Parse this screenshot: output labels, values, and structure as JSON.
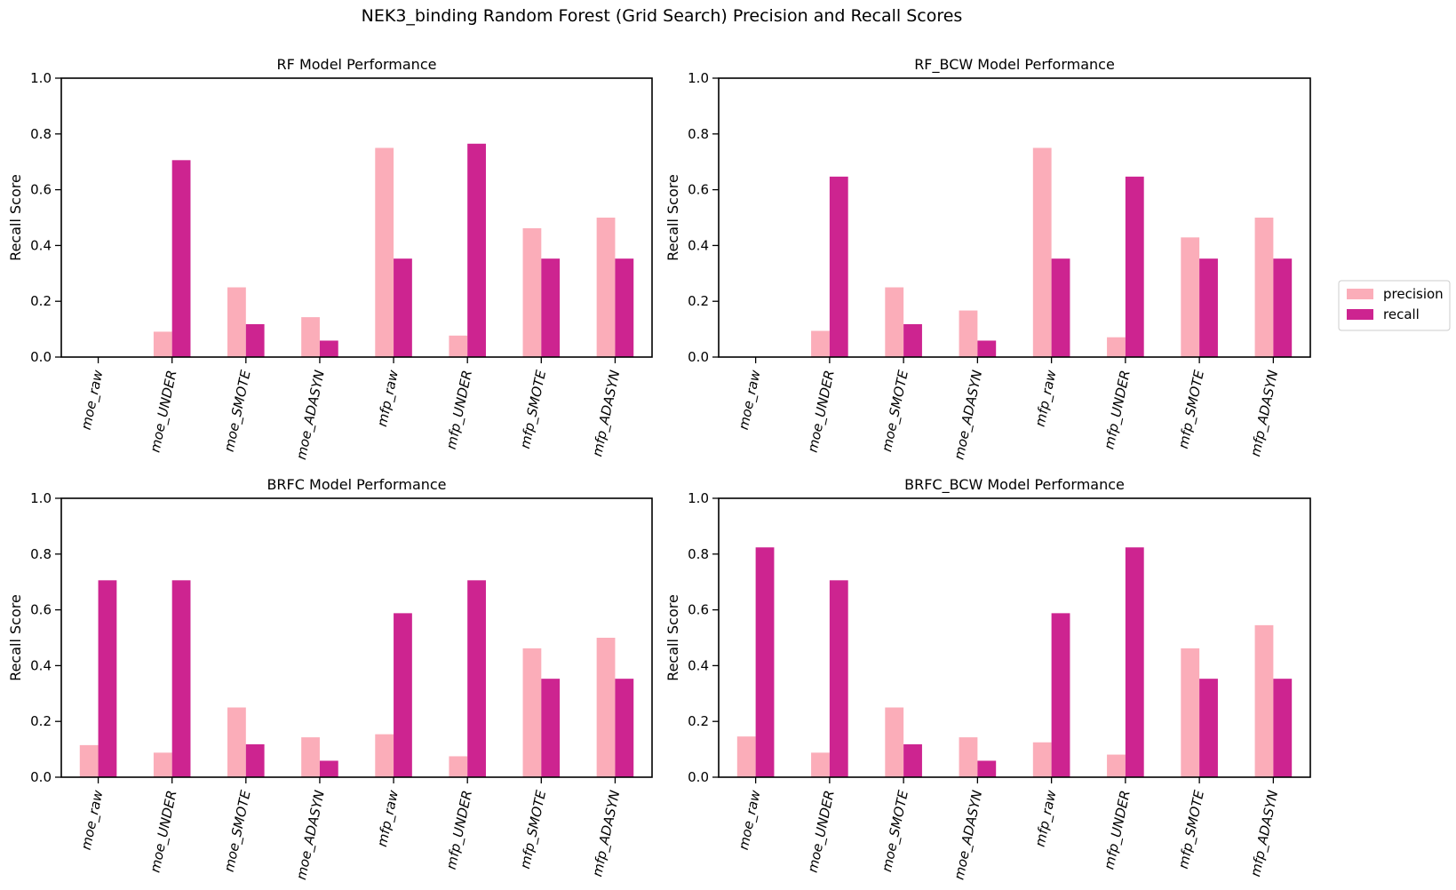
{
  "figure": {
    "title": "NEK3_binding Random Forest (Grid Search) Precision and Recall Scores",
    "colors": {
      "precision": "#fbadb9",
      "recall": "#cd2490"
    },
    "legend": {
      "placement": "right",
      "entries": [
        "precision",
        "recall"
      ]
    }
  },
  "chart_data": [
    {
      "type": "bar",
      "title": "RF Model Performance",
      "ylabel": "Recall Score",
      "xlabel": "",
      "ylim": [
        0,
        1.0
      ],
      "yticks": [
        "0.0",
        "0.2",
        "0.4",
        "0.6",
        "0.8",
        "1.0"
      ],
      "categories": [
        "moe_raw",
        "moe_UNDER",
        "moe_SMOTE",
        "moe_ADASYN",
        "mfp_raw",
        "mfp_UNDER",
        "mfp_SMOTE",
        "mfp_ADASYN"
      ],
      "series": [
        {
          "name": "precision",
          "values": [
            0.0,
            0.091,
            0.25,
            0.143,
            0.75,
            0.077,
            0.462,
            0.5
          ]
        },
        {
          "name": "recall",
          "values": [
            0.0,
            0.706,
            0.118,
            0.059,
            0.353,
            0.765,
            0.353,
            0.353
          ]
        }
      ]
    },
    {
      "type": "bar",
      "title": "RF_BCW Model Performance",
      "ylabel": "Recall Score",
      "xlabel": "",
      "ylim": [
        0,
        1.0
      ],
      "yticks": [
        "0.0",
        "0.2",
        "0.4",
        "0.6",
        "0.8",
        "1.0"
      ],
      "categories": [
        "moe_raw",
        "moe_UNDER",
        "moe_SMOTE",
        "moe_ADASYN",
        "mfp_raw",
        "mfp_UNDER",
        "mfp_SMOTE",
        "mfp_ADASYN"
      ],
      "series": [
        {
          "name": "precision",
          "values": [
            0.0,
            0.094,
            0.25,
            0.167,
            0.75,
            0.071,
            0.429,
            0.5
          ]
        },
        {
          "name": "recall",
          "values": [
            0.0,
            0.647,
            0.118,
            0.059,
            0.353,
            0.647,
            0.353,
            0.353
          ]
        }
      ]
    },
    {
      "type": "bar",
      "title": "BRFC Model Performance",
      "ylabel": "Recall Score",
      "xlabel": "",
      "ylim": [
        0,
        1.0
      ],
      "yticks": [
        "0.0",
        "0.2",
        "0.4",
        "0.6",
        "0.8",
        "1.0"
      ],
      "categories": [
        "moe_raw",
        "moe_UNDER",
        "moe_SMOTE",
        "moe_ADASYN",
        "mfp_raw",
        "mfp_UNDER",
        "mfp_SMOTE",
        "mfp_ADASYN"
      ],
      "series": [
        {
          "name": "precision",
          "values": [
            0.115,
            0.088,
            0.25,
            0.143,
            0.154,
            0.075,
            0.462,
            0.5
          ]
        },
        {
          "name": "recall",
          "values": [
            0.706,
            0.706,
            0.118,
            0.059,
            0.588,
            0.706,
            0.353,
            0.353
          ]
        }
      ]
    },
    {
      "type": "bar",
      "title": "BRFC_BCW Model Performance",
      "ylabel": "Recall Score",
      "xlabel": "",
      "ylim": [
        0,
        1.0
      ],
      "yticks": [
        "0.0",
        "0.2",
        "0.4",
        "0.6",
        "0.8",
        "1.0"
      ],
      "categories": [
        "moe_raw",
        "moe_UNDER",
        "moe_SMOTE",
        "moe_ADASYN",
        "mfp_raw",
        "mfp_UNDER",
        "mfp_SMOTE",
        "mfp_ADASYN"
      ],
      "series": [
        {
          "name": "precision",
          "values": [
            0.146,
            0.088,
            0.25,
            0.143,
            0.125,
            0.081,
            0.462,
            0.545
          ]
        },
        {
          "name": "recall",
          "values": [
            0.824,
            0.706,
            0.118,
            0.059,
            0.588,
            0.824,
            0.353,
            0.353
          ]
        }
      ]
    }
  ]
}
